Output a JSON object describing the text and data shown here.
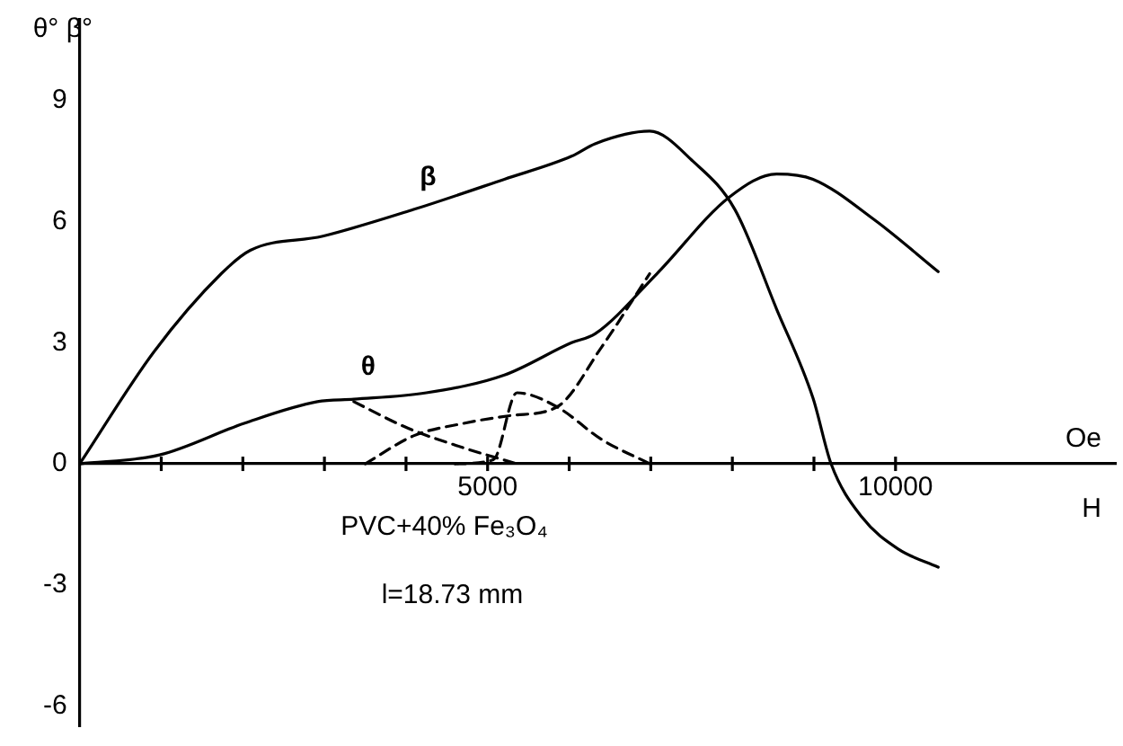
{
  "chart_data": {
    "type": "line",
    "xlabel": "H",
    "ylabel": "θ° β°",
    "annotations": [
      "Oe",
      "PVC+40% Fe₃O₄",
      "l=18.73 mm"
    ],
    "xlim": [
      0,
      12700
    ],
    "ylim": [
      -6.5,
      11
    ],
    "xticks": [
      {
        "value": 1000,
        "label": null
      },
      {
        "value": 2000,
        "label": null
      },
      {
        "value": 3000,
        "label": null
      },
      {
        "value": 4000,
        "label": null
      },
      5000,
      {
        "value": 6000,
        "label": null
      },
      {
        "value": 7000,
        "label": null
      },
      {
        "value": 8000,
        "label": null
      },
      {
        "value": 9000,
        "label": null
      },
      10000
    ],
    "yticks": [
      -6,
      -3,
      0,
      3,
      6,
      9
    ],
    "grid": false,
    "legend": false,
    "marker": "none",
    "series": [
      {
        "name": "β",
        "color": "#000000",
        "line_style": "solid",
        "x": [
          0,
          912,
          1735,
          2091,
          2981,
          4093,
          5206,
          6029,
          6318,
          6986,
          7520,
          8031,
          8543,
          8988,
          9210,
          9588,
          10033,
          10523
        ],
        "values": [
          0,
          2.78,
          4.71,
          5.29,
          5.64,
          6.3,
          7.05,
          7.62,
          7.93,
          8.24,
          7.49,
          6.3,
          3.83,
          1.63,
          0,
          -1.32,
          -2.11,
          -2.56
        ]
      },
      {
        "name": "θ",
        "color": "#000000",
        "line_style": "solid",
        "x": [
          0,
          979,
          2024,
          2914,
          3360,
          4249,
          5206,
          6029,
          6318,
          7075,
          7964,
          8543,
          8988,
          9744,
          10523
        ],
        "values": [
          0,
          0.22,
          1.01,
          1.54,
          1.6,
          1.76,
          2.2,
          3.0,
          3.22,
          4.71,
          6.61,
          7.18,
          7.05,
          6.04,
          4.76
        ]
      },
      {
        "color": "#000000",
        "line_style": "dashed",
        "x": [
          3360,
          4027,
          4700,
          5360
        ],
        "values": [
          1.54,
          0.88,
          0.4,
          0
        ]
      },
      {
        "color": "#000000",
        "line_style": "dashed",
        "x": [
          3500,
          4100,
          4700,
          5300,
          5851,
          6400,
          6986
        ],
        "values": [
          0,
          0.7,
          1.0,
          1.2,
          1.41,
          2.9,
          4.71
        ]
      },
      {
        "color": "#000000",
        "line_style": "dashed",
        "x": [
          4600,
          5070,
          5360,
          5851,
          6400,
          6990
        ],
        "values": [
          0,
          0.1,
          1.76,
          1.41,
          0.6,
          0
        ]
      }
    ]
  }
}
